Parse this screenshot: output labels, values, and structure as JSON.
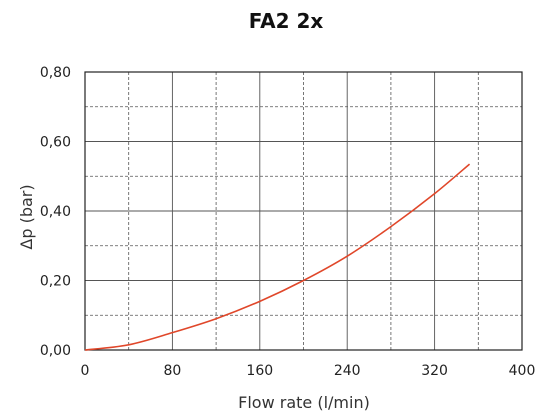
{
  "chart_data": {
    "type": "line",
    "title": "FA2 2x",
    "xlabel": "Flow rate (l/min)",
    "ylabel": "Δp  (bar)",
    "xlim": [
      0,
      400
    ],
    "ylim": [
      0,
      0.8
    ],
    "x_ticks": [
      "0",
      "80",
      "160",
      "240",
      "320",
      "400"
    ],
    "y_ticks": [
      "0,00",
      "0,20",
      "0,40",
      "0,60",
      "0,80"
    ],
    "grid": true,
    "series": [
      {
        "color": "#e0472a",
        "x": [
          0,
          40,
          80,
          120,
          160,
          200,
          240,
          280,
          320,
          352
        ],
        "y": [
          0,
          0.015,
          0.05,
          0.09,
          0.14,
          0.2,
          0.27,
          0.355,
          0.45,
          0.535
        ]
      }
    ]
  }
}
